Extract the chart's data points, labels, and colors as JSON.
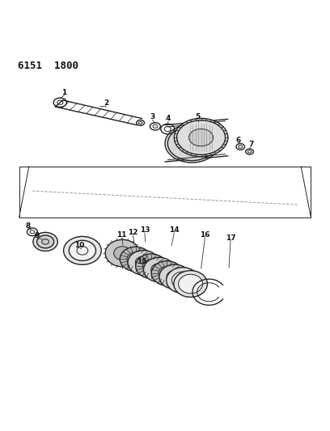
{
  "title_code": "6151  1800",
  "background_color": "#ffffff",
  "line_color": "#222222",
  "label_color": "#111111",
  "figsize": [
    4.08,
    5.33
  ],
  "dpi": 100
}
